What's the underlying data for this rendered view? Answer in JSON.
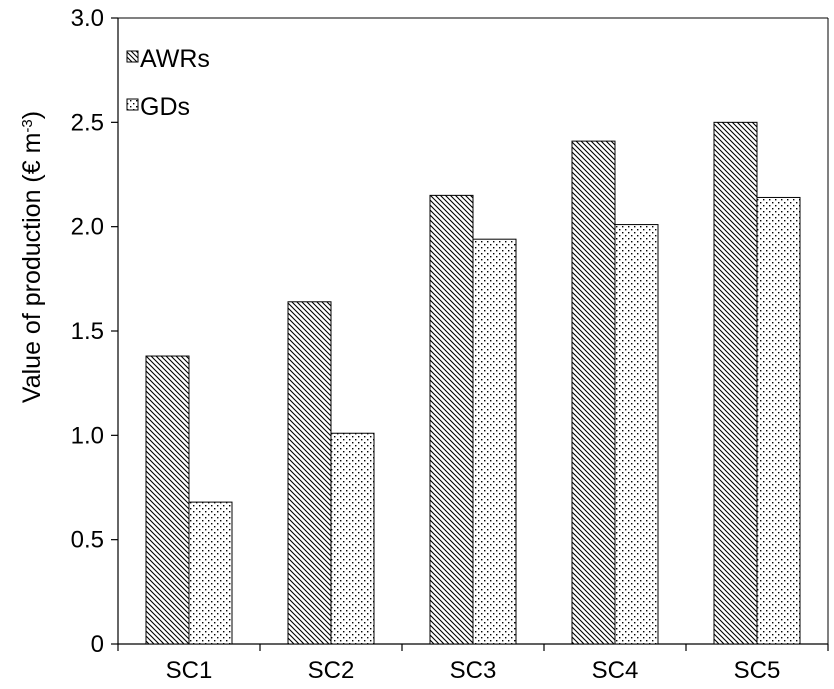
{
  "chart_data": {
    "type": "bar",
    "title": "",
    "xlabel": "",
    "ylabel": "Value of production (€ m",
    "ylabel_superscript": "-3",
    "ylabel_close": ")",
    "categories": [
      "SC1",
      "SC2",
      "SC3",
      "SC4",
      "SC5"
    ],
    "y_ticks": [
      "0",
      "0.5",
      "1.0",
      "1.5",
      "2.0",
      "2.5",
      "3.0"
    ],
    "ylim": [
      0,
      3.0
    ],
    "grid": false,
    "legend_position": "top-left",
    "series": [
      {
        "name": "AWRs",
        "pattern": "diagonal-hatch",
        "values": [
          1.38,
          1.64,
          2.15,
          2.41,
          2.5
        ]
      },
      {
        "name": "GDs",
        "pattern": "dots",
        "values": [
          0.68,
          1.01,
          1.94,
          2.01,
          2.14
        ]
      }
    ]
  },
  "colors": {
    "ink": "#000000",
    "background": "#ffffff"
  }
}
